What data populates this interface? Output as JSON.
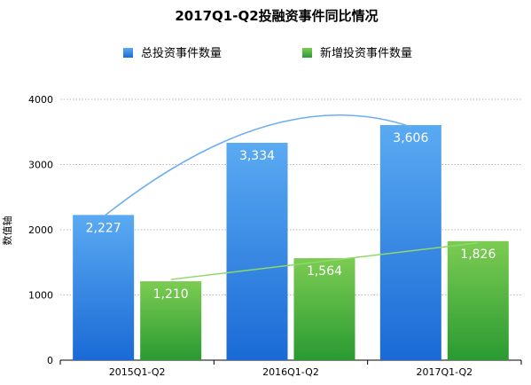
{
  "chart_data": {
    "type": "bar",
    "title": "2017Q1-Q2投融资事件同比情况",
    "ylabel": "数值轴",
    "xlabel": "",
    "categories": [
      "2015Q1-Q2",
      "2016Q1-Q2",
      "2017Q1-Q2"
    ],
    "ylim": [
      0,
      4000
    ],
    "yticks": [
      0,
      1000,
      2000,
      3000,
      4000
    ],
    "grid": true,
    "legend_position": "top",
    "series": [
      {
        "name": "总投资事件数量",
        "values": [
          2227,
          3334,
          3606
        ],
        "labels": [
          "2,227",
          "3,334",
          "3,606"
        ],
        "color_top": "#5aaaf2",
        "color_bottom": "#1a6ad6",
        "trendline_color": "#6aaef0"
      },
      {
        "name": "新增投资事件数量",
        "values": [
          1210,
          1564,
          1826
        ],
        "labels": [
          "1,210",
          "1,564",
          "1,826"
        ],
        "color_top": "#7ccc52",
        "color_bottom": "#2a9a32",
        "trendline_color": "#8fd86a"
      }
    ]
  }
}
